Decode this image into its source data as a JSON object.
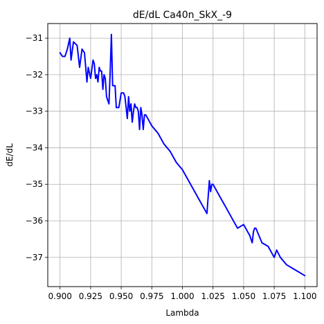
{
  "chart_data": {
    "type": "line",
    "title": "dE/dL Ca40n_SkX_-9",
    "xlabel": "Lambda",
    "ylabel": "dE/dL",
    "xlim": [
      0.89,
      1.11
    ],
    "ylim": [
      -37.8,
      -30.6
    ],
    "x_ticks": [
      0.9,
      0.925,
      0.95,
      0.975,
      1.0,
      1.025,
      1.05,
      1.075,
      1.1
    ],
    "x_tick_labels": [
      "0.900",
      "0.925",
      "0.950",
      "0.975",
      "1.000",
      "1.025",
      "1.050",
      "1.075",
      "1.100"
    ],
    "y_ticks": [
      -37,
      -36,
      -35,
      -34,
      -33,
      -32,
      -31
    ],
    "y_tick_labels": [
      "−37",
      "−36",
      "−35",
      "−34",
      "−33",
      "−32",
      "−31"
    ],
    "grid": true,
    "series": [
      {
        "color": "#0000ff",
        "x": [
          0.9,
          0.902,
          0.904,
          0.906,
          0.908,
          0.909,
          0.911,
          0.914,
          0.916,
          0.918,
          0.92,
          0.922,
          0.923,
          0.925,
          0.927,
          0.928,
          0.929,
          0.93,
          0.931,
          0.932,
          0.933,
          0.934,
          0.935,
          0.936,
          0.937,
          0.938,
          0.939,
          0.94,
          0.941,
          0.942,
          0.943,
          0.944,
          0.945,
          0.946,
          0.947,
          0.948,
          0.95,
          0.952,
          0.953,
          0.954,
          0.955,
          0.956,
          0.957,
          0.958,
          0.959,
          0.96,
          0.961,
          0.962,
          0.963,
          0.964,
          0.965,
          0.966,
          0.967,
          0.968,
          0.969,
          0.97,
          0.975,
          0.98,
          0.985,
          0.99,
          0.995,
          1.0,
          1.005,
          1.01,
          1.015,
          1.02,
          1.022,
          1.023,
          1.024,
          1.025,
          1.03,
          1.035,
          1.04,
          1.045,
          1.05,
          1.055,
          1.057,
          1.058,
          1.059,
          1.06,
          1.065,
          1.07,
          1.075,
          1.077,
          1.08,
          1.085,
          1.09,
          1.095,
          1.1
        ],
        "y": [
          -31.4,
          -31.5,
          -31.5,
          -31.3,
          -31.0,
          -31.6,
          -31.1,
          -31.2,
          -31.8,
          -31.3,
          -31.4,
          -32.2,
          -31.8,
          -32.1,
          -31.6,
          -31.7,
          -32.1,
          -32.0,
          -32.2,
          -31.8,
          -31.9,
          -31.9,
          -32.4,
          -32.0,
          -32.1,
          -32.6,
          -32.7,
          -32.8,
          -31.9,
          -30.9,
          -32.3,
          -32.3,
          -32.3,
          -32.9,
          -32.9,
          -32.9,
          -32.5,
          -32.5,
          -32.6,
          -32.9,
          -33.2,
          -32.6,
          -33.0,
          -32.8,
          -33.3,
          -33.0,
          -32.8,
          -32.9,
          -32.9,
          -33.0,
          -33.5,
          -32.9,
          -33.1,
          -33.5,
          -33.1,
          -33.1,
          -33.4,
          -33.6,
          -33.9,
          -34.1,
          -34.4,
          -34.6,
          -34.9,
          -35.2,
          -35.5,
          -35.8,
          -34.9,
          -35.2,
          -35.0,
          -35.0,
          -35.3,
          -35.6,
          -35.9,
          -36.2,
          -36.1,
          -36.4,
          -36.6,
          -36.3,
          -36.2,
          -36.2,
          -36.6,
          -36.7,
          -37.0,
          -36.8,
          -37.0,
          -37.2,
          -37.3,
          -37.4,
          -37.5
        ]
      }
    ]
  }
}
